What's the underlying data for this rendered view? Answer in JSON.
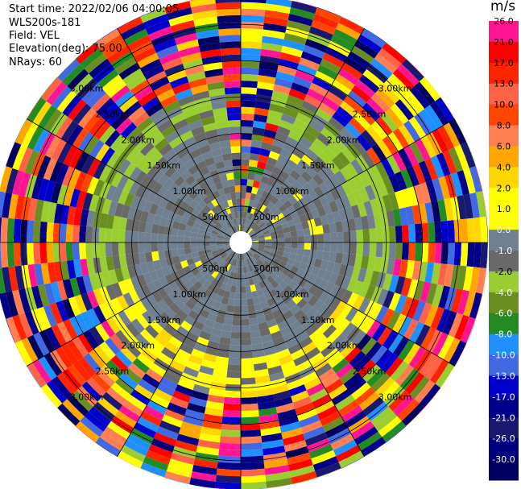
{
  "header": {
    "start_time": "Start time: 2022/02/06 04:00:05",
    "instrument": "WLS200s-181",
    "field": "Field: VEL",
    "elevation": "Elevation(deg): 75.00",
    "nrays": "NRays: 60"
  },
  "colorbar": {
    "unit": "m/s",
    "levels": [
      {
        "label": "26.0",
        "color": "#ff1493"
      },
      {
        "label": "21.0",
        "color": "#ff0000"
      },
      {
        "label": "17.0",
        "color": "#ff2400"
      },
      {
        "label": "13.0",
        "color": "#ff6347"
      },
      {
        "label": "10.0",
        "color": "#ff4500"
      },
      {
        "label": "8.0",
        "color": "#ff7f50"
      },
      {
        "label": "6.0",
        "color": "#ffa500"
      },
      {
        "label": "4.0",
        "color": "#ffd700"
      },
      {
        "label": "2.0",
        "color": "#ffff00"
      },
      {
        "label": "1.0",
        "color": "#ffff00"
      },
      {
        "label": "0.0",
        "color": "#708090"
      },
      {
        "label": "-1.0",
        "color": "#696969"
      },
      {
        "label": "-2.0",
        "color": "#9acd32"
      },
      {
        "label": "-4.0",
        "color": "#6b8e23"
      },
      {
        "label": "-6.0",
        "color": "#228b22"
      },
      {
        "label": "-8.0",
        "color": "#1e90ff"
      },
      {
        "label": "-10.0",
        "color": "#4169e1"
      },
      {
        "label": "-13.0",
        "color": "#0000cd"
      },
      {
        "label": "-17.0",
        "color": "#00008b"
      },
      {
        "label": "-21.0",
        "color": "#191970"
      },
      {
        "label": "-26.0",
        "color": "#000080"
      },
      {
        "label": "-30.0",
        "color": "#000060"
      }
    ]
  },
  "chart_data": {
    "type": "heatmap",
    "projection": "polar-ppi",
    "field": "VEL",
    "elevation_deg": 75.0,
    "n_rays": 60,
    "range_rings": [
      {
        "range_m": 500,
        "label": "500m"
      },
      {
        "range_m": 1000,
        "label": "1.00km"
      },
      {
        "range_m": 1500,
        "label": "1.50km"
      },
      {
        "range_m": 2000,
        "label": "2.00km"
      },
      {
        "range_m": 2500,
        "label": "2.50km"
      },
      {
        "range_m": 3000,
        "label": "3.00km"
      }
    ],
    "max_range_m": 3400,
    "gate_length_m": 90,
    "spokes_deg": [
      0,
      30,
      60,
      90,
      120,
      150,
      180,
      210,
      240,
      270,
      300,
      330
    ],
    "ray_profile": {
      "near_range_m": 1600,
      "near_range_values": [
        0.0,
        -1.0
      ],
      "transition_range_m": [
        1600,
        2150
      ],
      "transition_values": [
        -2.0,
        -4.0,
        0.0,
        -1.0
      ],
      "far_range_values": "mixed, full scale -30.0 to 26.0 m/s"
    }
  }
}
